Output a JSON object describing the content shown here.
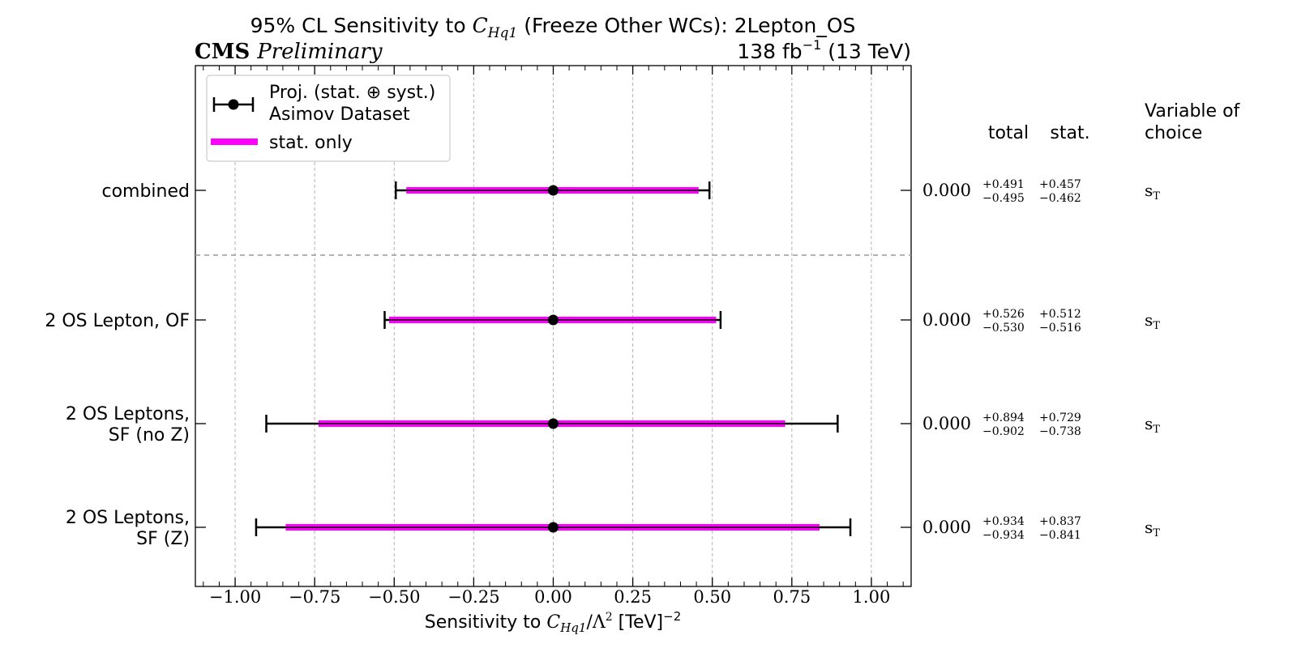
{
  "header": {
    "title_prefix": "95% CL Sensitivity to ",
    "title_symbol": "C",
    "title_symbol_sub": "Hq1",
    "title_suffix": " (Freeze Other WCs): 2Lepton_OS",
    "experiment": "CMS",
    "status": "Preliminary",
    "lumi_prefix": "138 fb",
    "lumi_exp": "−1",
    "lumi_suffix": " (13 TeV)"
  },
  "legend": {
    "entry1_line1": "Proj. (stat. ⊕ syst.)",
    "entry1_line2": "Asimov Dataset",
    "entry2": "stat. only",
    "stat_color": "#ff00ff",
    "marker_color": "#000000"
  },
  "table_headers": {
    "total": "total",
    "stat": "stat.",
    "variable_line1": "Variable of",
    "variable_line2": "choice"
  },
  "xaxis": {
    "label_prefix": "Sensitivity to ",
    "label_symbol": "C",
    "label_sub": "Hq1",
    "label_mid": "/Λ",
    "label_sup": "2",
    "label_suffix": " [TeV]",
    "label_exp": "−2"
  },
  "chart_data": {
    "type": "scatter",
    "subtype": "horizontal-error-bars",
    "xlim": [
      -1.125,
      1.125
    ],
    "xticks": [
      -1.0,
      -0.75,
      -0.5,
      -0.25,
      0.0,
      0.25,
      0.5,
      0.75,
      1.0
    ],
    "xtick_labels": [
      "−1.00",
      "−0.75",
      "−0.50",
      "−0.25",
      "0.00",
      "0.25",
      "0.50",
      "0.75",
      "1.00"
    ],
    "grid_x": true,
    "legend_position": "top-left",
    "separator_after_row": 0,
    "rows": [
      {
        "label_lines": [
          "combined"
        ],
        "central": 0.0,
        "central_label": "0.000",
        "total_up": 0.491,
        "total_down": 0.495,
        "stat_up": 0.457,
        "stat_down": 0.462,
        "total_up_label": "+0.491",
        "total_down_label": "−0.495",
        "stat_up_label": "+0.457",
        "stat_down_label": "−0.462",
        "variable": "s",
        "variable_sub": "T"
      },
      {
        "label_lines": [
          "2 OS Lepton, OF"
        ],
        "central": 0.0,
        "central_label": "0.000",
        "total_up": 0.526,
        "total_down": 0.53,
        "stat_up": 0.512,
        "stat_down": 0.516,
        "total_up_label": "+0.526",
        "total_down_label": "−0.530",
        "stat_up_label": "+0.512",
        "stat_down_label": "−0.516",
        "variable": "s",
        "variable_sub": "T"
      },
      {
        "label_lines": [
          "2 OS Leptons,",
          "SF (no Z)"
        ],
        "central": 0.0,
        "central_label": "0.000",
        "total_up": 0.894,
        "total_down": 0.902,
        "stat_up": 0.729,
        "stat_down": 0.738,
        "total_up_label": "+0.894",
        "total_down_label": "−0.902",
        "stat_up_label": "+0.729",
        "stat_down_label": "−0.738",
        "variable": "s",
        "variable_sub": "T"
      },
      {
        "label_lines": [
          "2 OS Leptons,",
          "SF (Z)"
        ],
        "central": 0.0,
        "central_label": "0.000",
        "total_up": 0.934,
        "total_down": 0.934,
        "stat_up": 0.837,
        "stat_down": 0.841,
        "total_up_label": "+0.934",
        "total_down_label": "−0.934",
        "stat_up_label": "+0.837",
        "stat_down_label": "−0.841",
        "variable": "s",
        "variable_sub": "T"
      }
    ]
  }
}
